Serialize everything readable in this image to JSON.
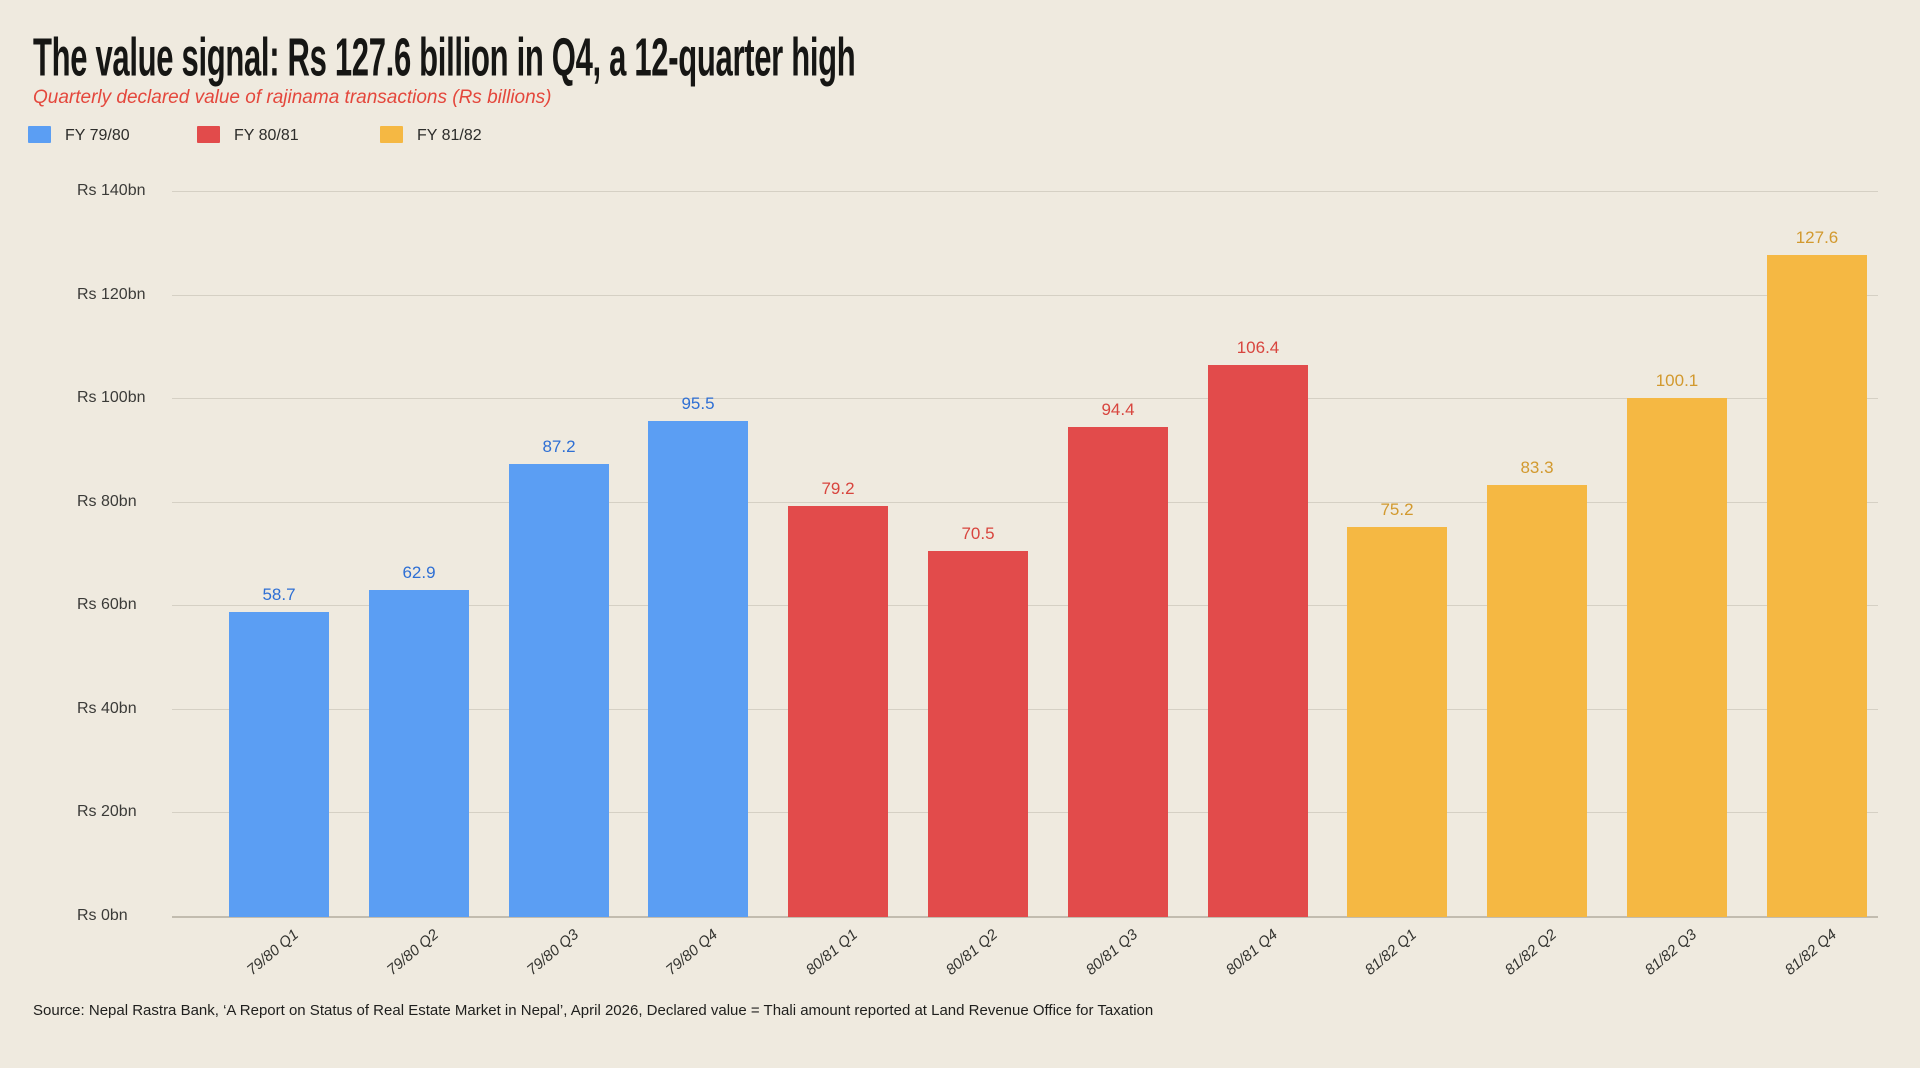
{
  "page": {
    "title": "The value signal: Rs 127.6 billion in Q4, a 12-quarter high",
    "subtitle": "Quarterly declared value of rajinama transactions (Rs billions)",
    "source": "Source: Nepal Rastra Bank, ‘A Report on Status of Real Estate Market in Nepal’, April 2026, Declared value = Thali amount reported at Land Revenue Office for Taxation"
  },
  "colors": {
    "background": "#EFEADF",
    "gridline": "#D5D0C4",
    "baseline": "#C2BCAF",
    "title_text": "#161614",
    "subtitle_text": "#E4473C",
    "tick_text": "#3B3B38"
  },
  "legend": {
    "items": [
      {
        "label": "FY 79/80",
        "color": "#5B9EF3"
      },
      {
        "label": "FY 80/81",
        "color": "#E24B4B"
      },
      {
        "label": "FY 81/82",
        "color": "#F5B843"
      }
    ]
  },
  "chart_data": {
    "type": "bar",
    "title": "The value signal: Rs 127.6 billion in Q4, a 12-quarter high",
    "subtitle": "Quarterly declared value of rajinama transactions (Rs billions)",
    "categories": [
      "79/80 Q1",
      "79/80 Q2",
      "79/80 Q3",
      "79/80 Q4",
      "80/81 Q1",
      "80/81 Q2",
      "80/81 Q3",
      "80/81 Q4",
      "81/82 Q1",
      "81/82 Q2",
      "81/82 Q3",
      "81/82 Q4"
    ],
    "series": [
      {
        "name": "FY 79/80",
        "color": "#5B9EF3",
        "label_color": "#2E6FD4",
        "quarters": [
          "79/80 Q1",
          "79/80 Q2",
          "79/80 Q3",
          "79/80 Q4"
        ],
        "values": [
          58.7,
          62.9,
          87.2,
          95.5
        ]
      },
      {
        "name": "FY 80/81",
        "color": "#E24B4B",
        "label_color": "#D8453E",
        "quarters": [
          "80/81 Q1",
          "80/81 Q2",
          "80/81 Q3",
          "80/81 Q4"
        ],
        "values": [
          79.2,
          70.5,
          94.4,
          106.4
        ]
      },
      {
        "name": "FY 81/82",
        "color": "#F5B843",
        "label_color": "#D2992E",
        "quarters": [
          "81/82 Q1",
          "81/82 Q2",
          "81/82 Q3",
          "81/82 Q4"
        ],
        "values": [
          75.2,
          83.3,
          100.1,
          127.6
        ]
      }
    ],
    "value_labels": [
      58.7,
      62.9,
      87.2,
      95.5,
      79.2,
      70.5,
      94.4,
      106.4,
      75.2,
      83.3,
      100.1,
      127.6
    ],
    "ylabel": "",
    "xlabel": "",
    "ylim": [
      0,
      140
    ],
    "yticks": [
      {
        "value": 0,
        "label": "Rs 0bn"
      },
      {
        "value": 20,
        "label": "Rs 20bn"
      },
      {
        "value": 40,
        "label": "Rs 40bn"
      },
      {
        "value": 60,
        "label": "Rs 60bn"
      },
      {
        "value": 80,
        "label": "Rs 80bn"
      },
      {
        "value": 100,
        "label": "Rs 100bn"
      },
      {
        "value": 120,
        "label": "Rs 120bn"
      },
      {
        "value": 140,
        "label": "Rs 140bn"
      }
    ],
    "grid": true,
    "legend_position": "top-left"
  }
}
